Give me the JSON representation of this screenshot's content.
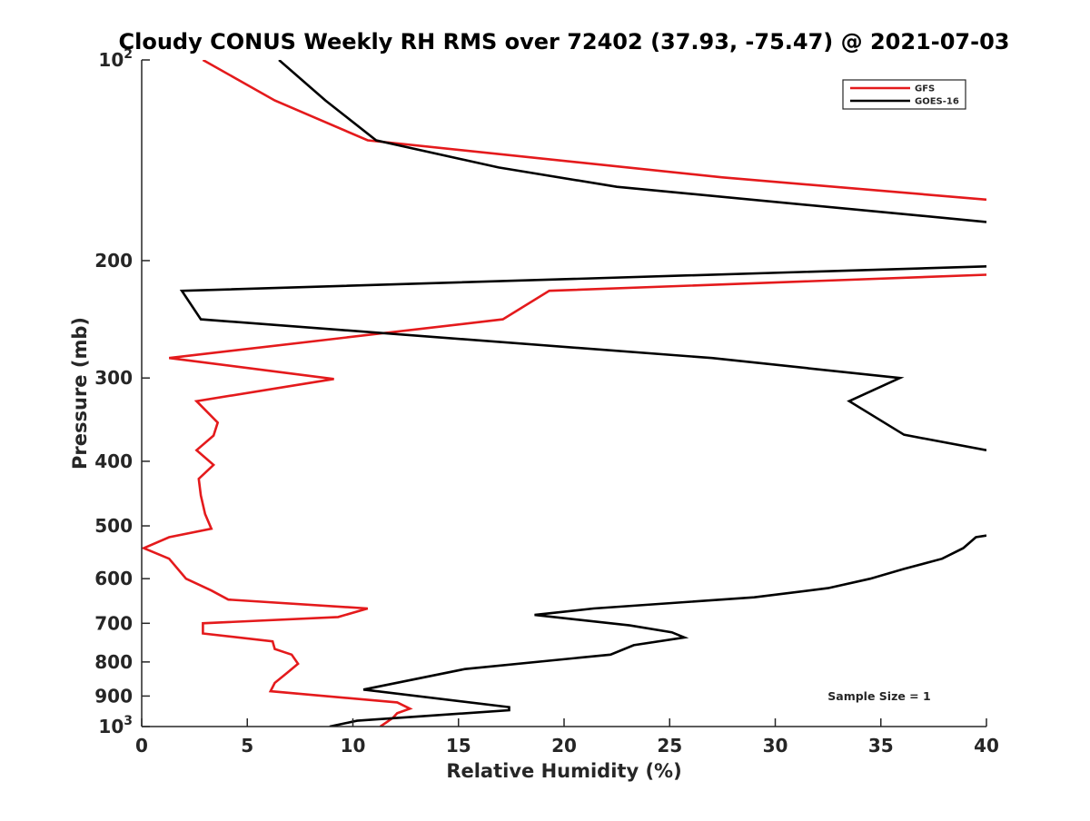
{
  "chart_data": {
    "type": "line",
    "title": "Cloudy CONUS Weekly RH RMS over 72402 (37.93, -75.47) @ 2021-07-03",
    "xlabel": "Relative Humidity (%)",
    "ylabel": "Pressure (mb)",
    "xlim": [
      0,
      40
    ],
    "ylim": [
      100,
      1000
    ],
    "y_scale": "log",
    "y_reversed": true,
    "grid": false,
    "legend_position": "top-right",
    "x_ticks": [
      {
        "value": 0,
        "label": "0"
      },
      {
        "value": 5,
        "label": "5"
      },
      {
        "value": 10,
        "label": "10"
      },
      {
        "value": 15,
        "label": "15"
      },
      {
        "value": 20,
        "label": "20"
      },
      {
        "value": 25,
        "label": "25"
      },
      {
        "value": 30,
        "label": "30"
      },
      {
        "value": 35,
        "label": "35"
      },
      {
        "value": 40,
        "label": "40"
      }
    ],
    "y_ticks": [
      {
        "value": 100,
        "base": "10",
        "exp": "2"
      },
      {
        "value": 200,
        "label": "200"
      },
      {
        "value": 300,
        "label": "300"
      },
      {
        "value": 400,
        "label": "400"
      },
      {
        "value": 500,
        "label": "500"
      },
      {
        "value": 600,
        "label": "600"
      },
      {
        "value": 700,
        "label": "700"
      },
      {
        "value": 800,
        "label": "800"
      },
      {
        "value": 900,
        "label": "900"
      },
      {
        "value": 1000,
        "base": "10",
        "exp": "3"
      }
    ],
    "series": [
      {
        "name": "GFS",
        "color": "#e41a1c",
        "points": [
          {
            "x": 2.9,
            "y": 100
          },
          {
            "x": 6.3,
            "y": 115
          },
          {
            "x": 10.7,
            "y": 132
          },
          {
            "x": 27.5,
            "y": 150
          },
          {
            "x": 40.0,
            "y": 162
          },
          {
            "x": null,
            "y": null
          },
          {
            "x": 40.0,
            "y": 210
          },
          {
            "x": 19.3,
            "y": 222
          },
          {
            "x": 17.1,
            "y": 245
          },
          {
            "x": 1.3,
            "y": 280
          },
          {
            "x": 9.1,
            "y": 301
          },
          {
            "x": 2.6,
            "y": 325
          },
          {
            "x": 3.6,
            "y": 350
          },
          {
            "x": 3.4,
            "y": 366
          },
          {
            "x": 2.6,
            "y": 385
          },
          {
            "x": 3.4,
            "y": 405
          },
          {
            "x": 2.7,
            "y": 425
          },
          {
            "x": 2.8,
            "y": 450
          },
          {
            "x": 3.0,
            "y": 480
          },
          {
            "x": 3.3,
            "y": 505
          },
          {
            "x": 1.3,
            "y": 520
          },
          {
            "x": 0.1,
            "y": 540
          },
          {
            "x": 1.3,
            "y": 560
          },
          {
            "x": 2.1,
            "y": 600
          },
          {
            "x": 3.3,
            "y": 625
          },
          {
            "x": 4.1,
            "y": 645
          },
          {
            "x": 10.7,
            "y": 665
          },
          {
            "x": 9.3,
            "y": 685
          },
          {
            "x": 2.9,
            "y": 700
          },
          {
            "x": 2.9,
            "y": 725
          },
          {
            "x": 6.2,
            "y": 745
          },
          {
            "x": 6.3,
            "y": 765
          },
          {
            "x": 7.1,
            "y": 780
          },
          {
            "x": 7.4,
            "y": 805
          },
          {
            "x": 6.9,
            "y": 830
          },
          {
            "x": 6.3,
            "y": 860
          },
          {
            "x": 6.1,
            "y": 885
          },
          {
            "x": 12.1,
            "y": 920
          },
          {
            "x": 12.7,
            "y": 940
          },
          {
            "x": 12.1,
            "y": 955
          },
          {
            "x": 11.9,
            "y": 970
          },
          {
            "x": 11.6,
            "y": 985
          },
          {
            "x": 11.3,
            "y": 1000
          }
        ]
      },
      {
        "name": "GOES-16",
        "color": "#000000",
        "points": [
          {
            "x": 6.5,
            "y": 100
          },
          {
            "x": 8.7,
            "y": 115
          },
          {
            "x": 11.1,
            "y": 132
          },
          {
            "x": 16.9,
            "y": 145
          },
          {
            "x": 22.5,
            "y": 155
          },
          {
            "x": 40.0,
            "y": 175
          },
          {
            "x": null,
            "y": null
          },
          {
            "x": 40.0,
            "y": 204
          },
          {
            "x": 1.9,
            "y": 222
          },
          {
            "x": 2.8,
            "y": 245
          },
          {
            "x": 27.0,
            "y": 280
          },
          {
            "x": 35.9,
            "y": 300
          },
          {
            "x": 33.5,
            "y": 325
          },
          {
            "x": 36.1,
            "y": 365
          },
          {
            "x": 40.0,
            "y": 385
          },
          {
            "x": null,
            "y": null
          },
          {
            "x": 40.0,
            "y": 517
          },
          {
            "x": 39.5,
            "y": 520
          },
          {
            "x": 38.9,
            "y": 540
          },
          {
            "x": 37.9,
            "y": 560
          },
          {
            "x": 36.1,
            "y": 580
          },
          {
            "x": 34.5,
            "y": 600
          },
          {
            "x": 32.5,
            "y": 620
          },
          {
            "x": 29.0,
            "y": 640
          },
          {
            "x": 21.4,
            "y": 665
          },
          {
            "x": 18.6,
            "y": 680
          },
          {
            "x": 23.1,
            "y": 705
          },
          {
            "x": 25.1,
            "y": 722
          },
          {
            "x": 25.7,
            "y": 735
          },
          {
            "x": 23.3,
            "y": 755
          },
          {
            "x": 22.2,
            "y": 780
          },
          {
            "x": 15.3,
            "y": 820
          },
          {
            "x": 10.5,
            "y": 880
          },
          {
            "x": 17.4,
            "y": 935
          },
          {
            "x": 17.4,
            "y": 945
          },
          {
            "x": 10.2,
            "y": 980
          },
          {
            "x": 8.9,
            "y": 1000
          }
        ]
      }
    ],
    "annotations": [
      {
        "text": "Sample Size = 1",
        "position": "bottom-right"
      }
    ]
  }
}
